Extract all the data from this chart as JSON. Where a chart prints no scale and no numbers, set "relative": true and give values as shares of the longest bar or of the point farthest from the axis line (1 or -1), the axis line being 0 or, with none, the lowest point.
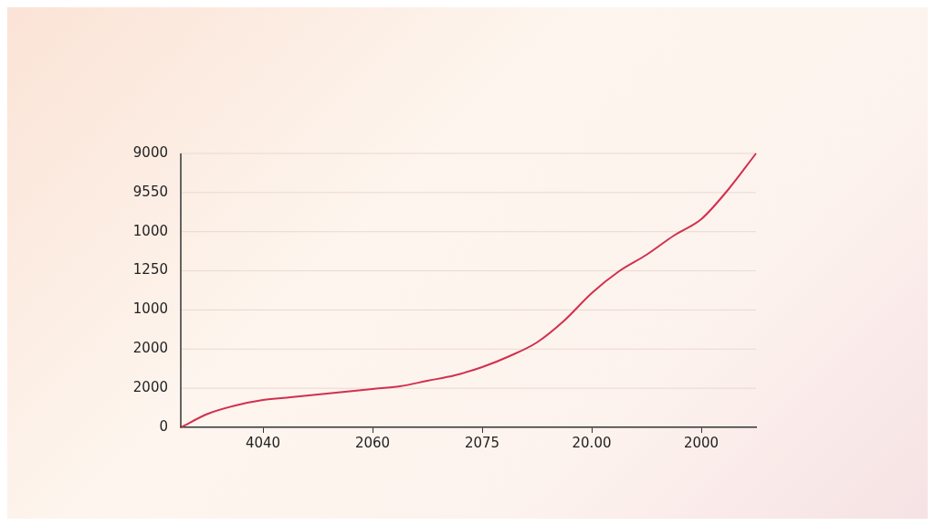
{
  "chart_data": {
    "type": "line",
    "relative": true,
    "categories": [
      null,
      null,
      null,
      "4040",
      null,
      null,
      null,
      "2060",
      null,
      null,
      null,
      "2075",
      null,
      null,
      null,
      "20.00",
      null,
      null,
      null,
      "2000",
      null,
      null
    ],
    "series": [
      {
        "color": "#d1304f",
        "values": [
          0,
          0.05,
          0.08,
          0.1,
          0.11,
          0.12,
          0.13,
          0.14,
          0.15,
          0.17,
          0.19,
          0.22,
          0.26,
          0.31,
          0.39,
          0.49,
          0.57,
          0.63,
          0.7,
          0.76,
          0.87,
          1
        ]
      }
    ],
    "annotations": [
      "9000",
      "9550",
      "1000",
      "1250",
      "1000",
      "2000",
      "2000",
      "0"
    ],
    "grid": "y",
    "legend": false,
    "marker": "none",
    "line_style": "solid"
  }
}
